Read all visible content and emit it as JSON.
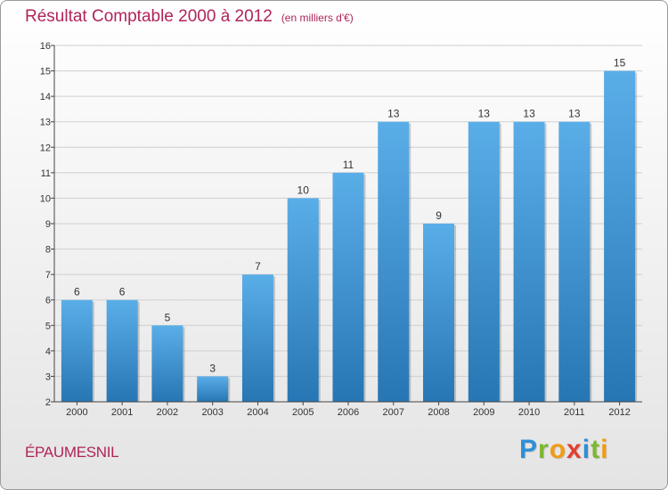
{
  "header": {
    "title": "Résultat Comptable 2000 à 2012",
    "unit": "(en milliers d'€)"
  },
  "footer": {
    "commune": "ÉPAUMESNIL",
    "logo": [
      "P",
      "r",
      "o",
      "x",
      "i",
      "t",
      "i"
    ],
    "logo_colors": [
      "#2e8fd6",
      "#7cb82f",
      "#f29b13",
      "#e23f2f",
      "#2e8fd6",
      "#7cb82f",
      "#f29b13"
    ]
  },
  "chart_data": {
    "type": "bar",
    "title": "Résultat Comptable 2000 à 2012",
    "xlabel": "",
    "ylabel": "",
    "categories": [
      "2000",
      "2001",
      "2002",
      "2003",
      "2004",
      "2005",
      "2006",
      "2007",
      "2008",
      "2009",
      "2010",
      "2011",
      "2012"
    ],
    "values": [
      6,
      6,
      5,
      3,
      7,
      10,
      11,
      13,
      9,
      13,
      13,
      13,
      15
    ],
    "ylim": [
      2,
      16
    ],
    "yticks": [
      2,
      3,
      4,
      5,
      6,
      7,
      8,
      9,
      10,
      11,
      12,
      13,
      14,
      15,
      16
    ],
    "grid": true,
    "colors": {
      "bar_top": "#5aaee8",
      "bar_bottom": "#2776b4",
      "grid": "#cfcfcf",
      "axis": "#444444"
    }
  }
}
